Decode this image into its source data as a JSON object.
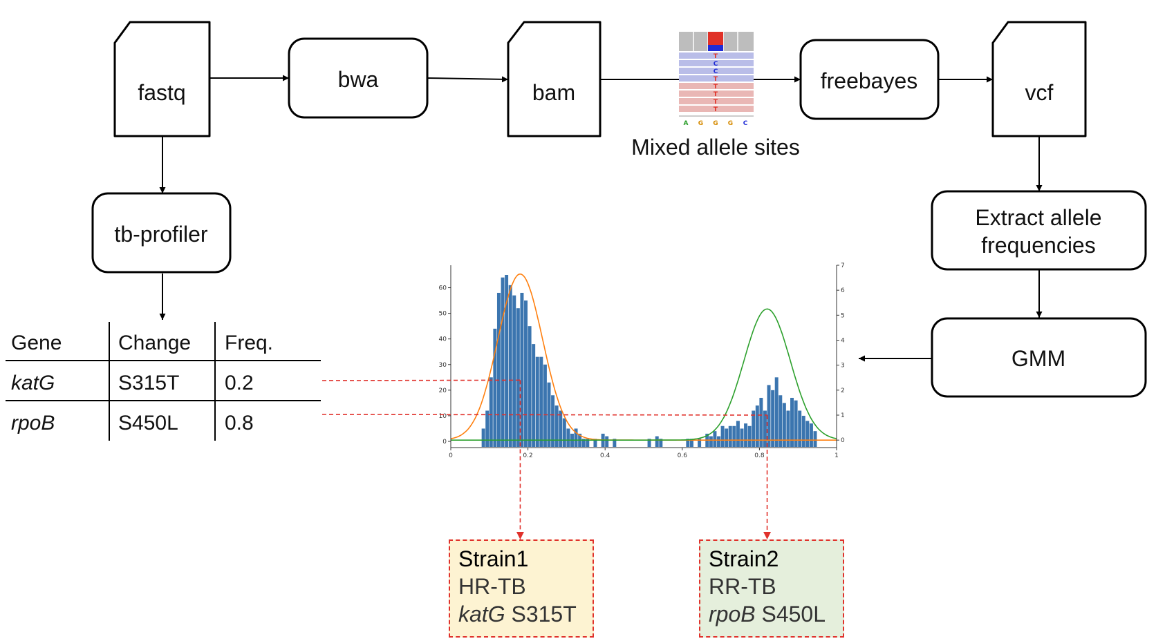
{
  "nodes": {
    "fastq": "fastq",
    "bwa": "bwa",
    "bam": "bam",
    "freebayes": "freebayes",
    "vcf": "vcf",
    "tbprofiler": "tb-profiler",
    "extract_line1": "Extract allele",
    "extract_line2": "frequencies",
    "gmm": "GMM"
  },
  "igv": {
    "caption": "Mixed allele sites",
    "read_bases": [
      "T",
      "C",
      "C",
      "T",
      "T",
      "T",
      "T",
      "T"
    ],
    "reference": [
      "A",
      "G",
      "G",
      "G",
      "C"
    ]
  },
  "table": {
    "headers": [
      "Gene",
      "Change",
      "Freq."
    ],
    "rows": [
      {
        "gene": "katG",
        "change": "S315T",
        "freq": "0.2"
      },
      {
        "gene": "rpoB",
        "change": "S450L",
        "freq": "0.8"
      }
    ]
  },
  "chart_data": {
    "type": "bar",
    "xlim": [
      0,
      1
    ],
    "x_ticks": [
      "0",
      "0.2",
      "0.4",
      "0.6",
      "0.8",
      "1"
    ],
    "ylim_left": [
      0,
      65
    ],
    "y_ticks_left": [
      "0",
      "10",
      "20",
      "30",
      "40",
      "50",
      "60"
    ],
    "ylim_right": [
      -0.3,
      7
    ],
    "y_ticks_right": [
      "0",
      "1",
      "2",
      "3",
      "4",
      "5",
      "6",
      "7"
    ],
    "bin_width": 0.01,
    "histogram": [
      {
        "x": 0.085,
        "y": 5
      },
      {
        "x": 0.095,
        "y": 12
      },
      {
        "x": 0.105,
        "y": 25
      },
      {
        "x": 0.115,
        "y": 44
      },
      {
        "x": 0.125,
        "y": 58
      },
      {
        "x": 0.135,
        "y": 64
      },
      {
        "x": 0.145,
        "y": 65
      },
      {
        "x": 0.155,
        "y": 61
      },
      {
        "x": 0.165,
        "y": 57
      },
      {
        "x": 0.175,
        "y": 52
      },
      {
        "x": 0.185,
        "y": 58
      },
      {
        "x": 0.195,
        "y": 55
      },
      {
        "x": 0.205,
        "y": 45
      },
      {
        "x": 0.215,
        "y": 38
      },
      {
        "x": 0.225,
        "y": 33
      },
      {
        "x": 0.235,
        "y": 33
      },
      {
        "x": 0.245,
        "y": 30
      },
      {
        "x": 0.255,
        "y": 23
      },
      {
        "x": 0.265,
        "y": 18
      },
      {
        "x": 0.275,
        "y": 14
      },
      {
        "x": 0.285,
        "y": 12
      },
      {
        "x": 0.295,
        "y": 9
      },
      {
        "x": 0.305,
        "y": 5
      },
      {
        "x": 0.315,
        "y": 3
      },
      {
        "x": 0.325,
        "y": 5
      },
      {
        "x": 0.335,
        "y": 3
      },
      {
        "x": 0.345,
        "y": 1
      },
      {
        "x": 0.355,
        "y": 1
      },
      {
        "x": 0.375,
        "y": 1
      },
      {
        "x": 0.395,
        "y": 3
      },
      {
        "x": 0.405,
        "y": 2
      },
      {
        "x": 0.425,
        "y": 1
      },
      {
        "x": 0.515,
        "y": 1
      },
      {
        "x": 0.535,
        "y": 2
      },
      {
        "x": 0.545,
        "y": 1
      },
      {
        "x": 0.615,
        "y": 1
      },
      {
        "x": 0.625,
        "y": 1
      },
      {
        "x": 0.645,
        "y": 1
      },
      {
        "x": 0.665,
        "y": 3
      },
      {
        "x": 0.675,
        "y": 2
      },
      {
        "x": 0.685,
        "y": 4
      },
      {
        "x": 0.695,
        "y": 2
      },
      {
        "x": 0.705,
        "y": 6
      },
      {
        "x": 0.715,
        "y": 5
      },
      {
        "x": 0.725,
        "y": 6
      },
      {
        "x": 0.735,
        "y": 6
      },
      {
        "x": 0.745,
        "y": 8
      },
      {
        "x": 0.755,
        "y": 5
      },
      {
        "x": 0.765,
        "y": 7
      },
      {
        "x": 0.775,
        "y": 6
      },
      {
        "x": 0.785,
        "y": 12
      },
      {
        "x": 0.795,
        "y": 14
      },
      {
        "x": 0.805,
        "y": 17
      },
      {
        "x": 0.815,
        "y": 12
      },
      {
        "x": 0.825,
        "y": 22
      },
      {
        "x": 0.835,
        "y": 20
      },
      {
        "x": 0.845,
        "y": 25
      },
      {
        "x": 0.855,
        "y": 18
      },
      {
        "x": 0.865,
        "y": 15
      },
      {
        "x": 0.875,
        "y": 12
      },
      {
        "x": 0.885,
        "y": 17
      },
      {
        "x": 0.895,
        "y": 16
      },
      {
        "x": 0.905,
        "y": 12
      },
      {
        "x": 0.915,
        "y": 10
      },
      {
        "x": 0.925,
        "y": 8
      },
      {
        "x": 0.935,
        "y": 7
      },
      {
        "x": 0.945,
        "y": 4
      }
    ],
    "gaussians": [
      {
        "color": "#ff7f0e",
        "mean": 0.18,
        "sd": 0.058,
        "peak": 6.65,
        "axis": "right"
      },
      {
        "color": "#2ca02c",
        "mean": 0.82,
        "sd": 0.06,
        "peak": 5.25,
        "axis": "right"
      }
    ],
    "bar_color": "#3b75af",
    "reference_lines": [
      {
        "y_right": 2.4,
        "x": 0.18
      },
      {
        "y_right": 1.0,
        "x": 0.82
      }
    ]
  },
  "strains": [
    {
      "title": "Strain1",
      "type": "HR-TB",
      "gene": "katG",
      "mutation": "S315T",
      "fill": "#fdf3d2"
    },
    {
      "title": "Strain2",
      "type": "RR-TB",
      "gene": "rpoB",
      "mutation": "S450L",
      "fill": "#e5efdc"
    }
  ],
  "colors": {
    "dashed_connector": "#e0312b",
    "igv_mismatch_T": "#e03127",
    "igv_mismatch_C": "#1f2bd6",
    "igv_read_blue": "#b9bde8",
    "igv_read_red": "#e9b7b5"
  }
}
